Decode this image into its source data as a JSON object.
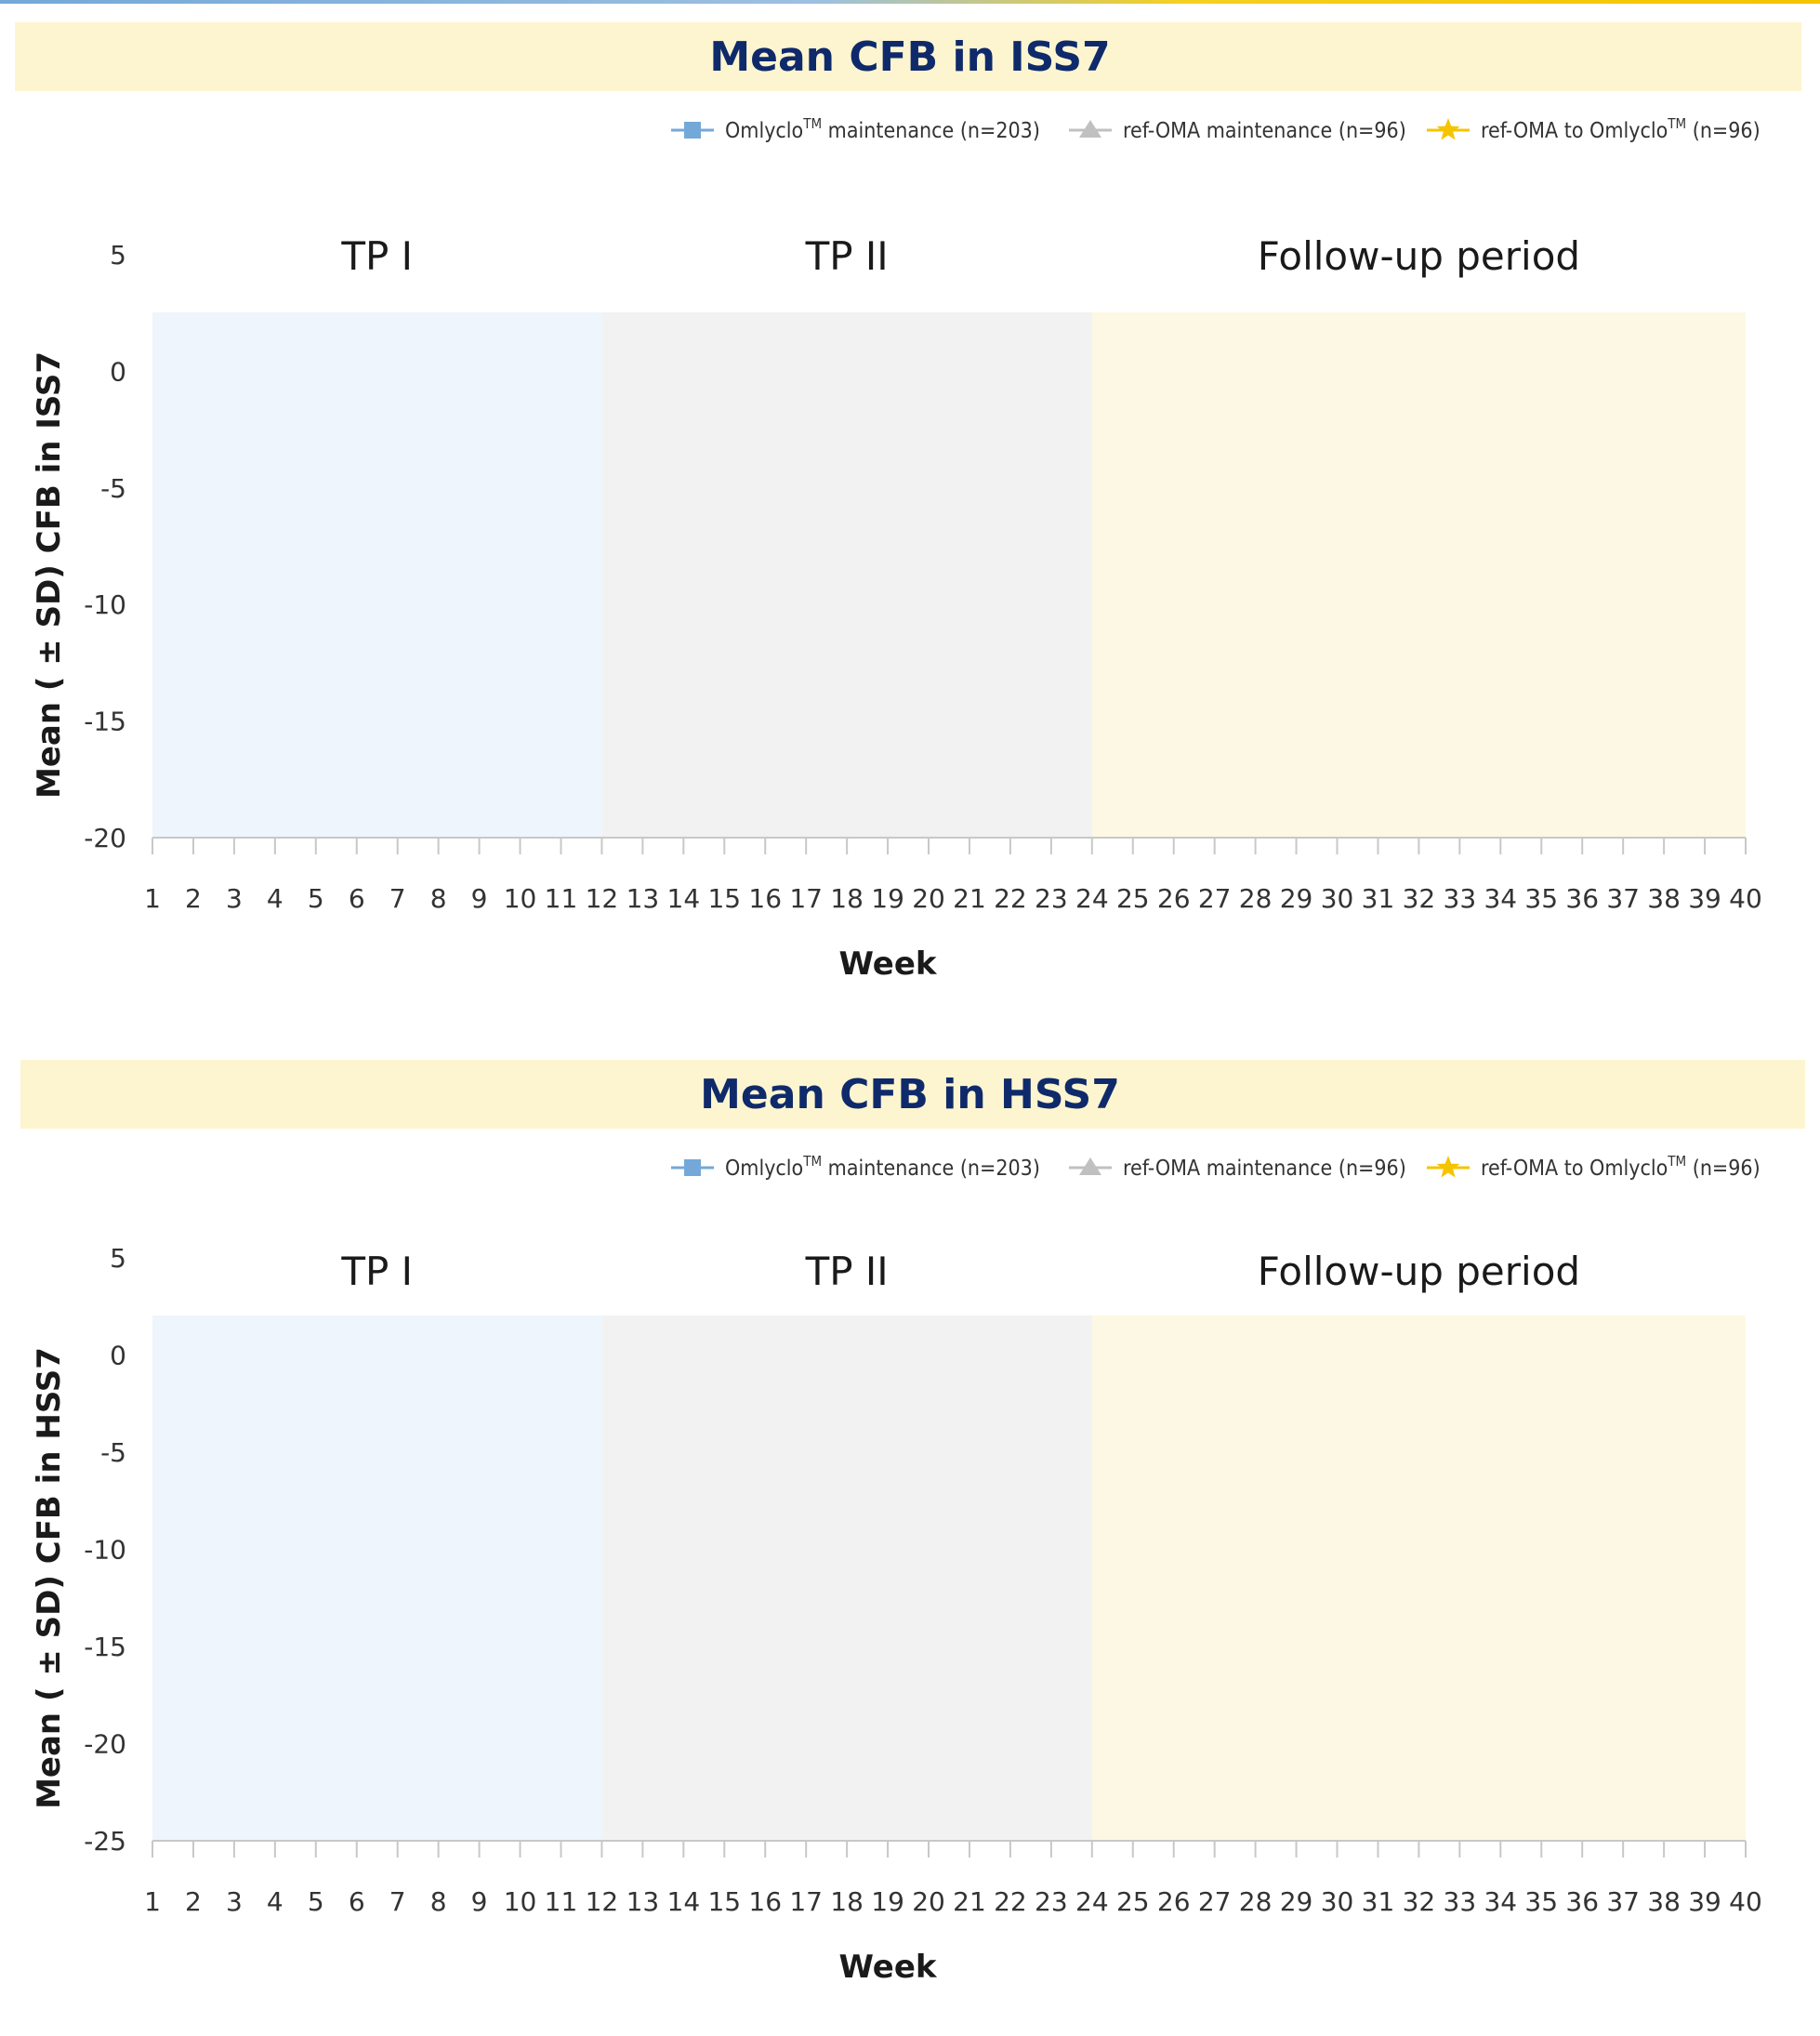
{
  "colors": {
    "title_band": "#fdf5cf",
    "tp1_band": "#eff5fd",
    "tp2_band": "#f2f2f2",
    "followup_band": "#fdf8e3",
    "title_text": "#0f2a6b",
    "series_omlyclo": "#74a8d8",
    "series_ref_oma": "#c0c0c0",
    "series_switch": "#f5c400"
  },
  "legend": [
    {
      "base": "Omlyclo",
      "sup": "TM",
      "rest": " maintenance (n=203)",
      "marker": "square-icon",
      "color": "#74a8d8"
    },
    {
      "base": "ref-OMA maintenance (n=96)",
      "sup": "",
      "rest": "",
      "marker": "triangle-icon",
      "color": "#c0c0c0"
    },
    {
      "base": "ref-OMA to Omlyclo",
      "sup": "TM",
      "rest": " (n=96)",
      "marker": "star-icon",
      "color": "#f5c400"
    }
  ],
  "chart_data": [
    {
      "type": "line",
      "title": "Mean CFB in ISS7",
      "ylabel": "Mean ( ± SD) CFB in ISS7",
      "xlabel": "Week",
      "x_ticks": [
        1,
        2,
        3,
        4,
        5,
        6,
        7,
        8,
        9,
        10,
        11,
        12,
        13,
        14,
        15,
        16,
        17,
        18,
        19,
        20,
        21,
        22,
        23,
        24,
        25,
        26,
        27,
        28,
        29,
        30,
        31,
        32,
        33,
        34,
        35,
        36,
        37,
        38,
        39,
        40
      ],
      "y_ticks": [
        5,
        0,
        -5,
        -10,
        -15,
        -20
      ],
      "ylim": [
        -20,
        5
      ],
      "xlim": [
        1,
        40
      ],
      "periods": [
        {
          "label": "TP I",
          "start": 1,
          "end": 12
        },
        {
          "label": "TP II",
          "start": 12,
          "end": 24
        },
        {
          "label": "Follow-up period",
          "start": 24,
          "end": 40
        }
      ],
      "series": [
        {
          "name": "OmlycloTM maintenance (n=203)",
          "values": []
        },
        {
          "name": "ref-OMA maintenance (n=96)",
          "values": []
        },
        {
          "name": "ref-OMA to OmlycloTM (n=96)",
          "values": []
        }
      ]
    },
    {
      "type": "line",
      "title": "Mean CFB in HSS7",
      "ylabel": "Mean ( ± SD) CFB in HSS7",
      "xlabel": "Week",
      "x_ticks": [
        1,
        2,
        3,
        4,
        5,
        6,
        7,
        8,
        9,
        10,
        11,
        12,
        13,
        14,
        15,
        16,
        17,
        18,
        19,
        20,
        21,
        22,
        23,
        24,
        25,
        26,
        27,
        28,
        29,
        30,
        31,
        32,
        33,
        34,
        35,
        36,
        37,
        38,
        39,
        40
      ],
      "y_ticks": [
        5,
        0,
        -5,
        -10,
        -15,
        -20,
        -25
      ],
      "ylim": [
        -25,
        5
      ],
      "xlim": [
        1,
        40
      ],
      "periods": [
        {
          "label": "TP I",
          "start": 1,
          "end": 12
        },
        {
          "label": "TP II",
          "start": 12,
          "end": 24
        },
        {
          "label": "Follow-up period",
          "start": 24,
          "end": 40
        }
      ],
      "series": [
        {
          "name": "OmlycloTM maintenance (n=203)",
          "values": []
        },
        {
          "name": "ref-OMA maintenance (n=96)",
          "values": []
        },
        {
          "name": "ref-OMA to OmlycloTM (n=96)",
          "values": []
        }
      ]
    }
  ]
}
